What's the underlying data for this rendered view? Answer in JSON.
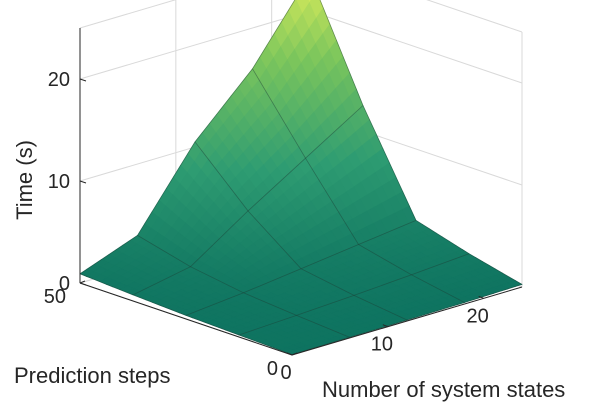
{
  "chart_data": {
    "type": "surface",
    "title": "",
    "xlabel": "Number of system states",
    "ylabel": "Prediction steps",
    "zlabel": "Time (s)",
    "x": [
      0,
      6,
      12,
      18,
      24
    ],
    "y": [
      0,
      12.5,
      25,
      37.5,
      50
    ],
    "z": [
      [
        0.05,
        0.07,
        0.1,
        0.15,
        0.25
      ],
      [
        0.2,
        0.45,
        0.75,
        1.1,
        1.5
      ],
      [
        0.35,
        0.9,
        1.6,
        2.3,
        3.0
      ],
      [
        0.6,
        1.7,
        5.5,
        9.0,
        12.5
      ],
      [
        0.9,
        3.0,
        10.5,
        16.0,
        23.5
      ]
    ],
    "xticks": [
      0,
      10,
      20
    ],
    "yticks": [
      0,
      50
    ],
    "zticks": [
      0,
      10,
      20
    ],
    "xlim": [
      0,
      24
    ],
    "ylim": [
      0,
      50
    ],
    "zlim": [
      0,
      25
    ],
    "colormap": [
      "#0e7360",
      "#2e9c72",
      "#7cc65c",
      "#f2f55a"
    ],
    "grid": true
  }
}
